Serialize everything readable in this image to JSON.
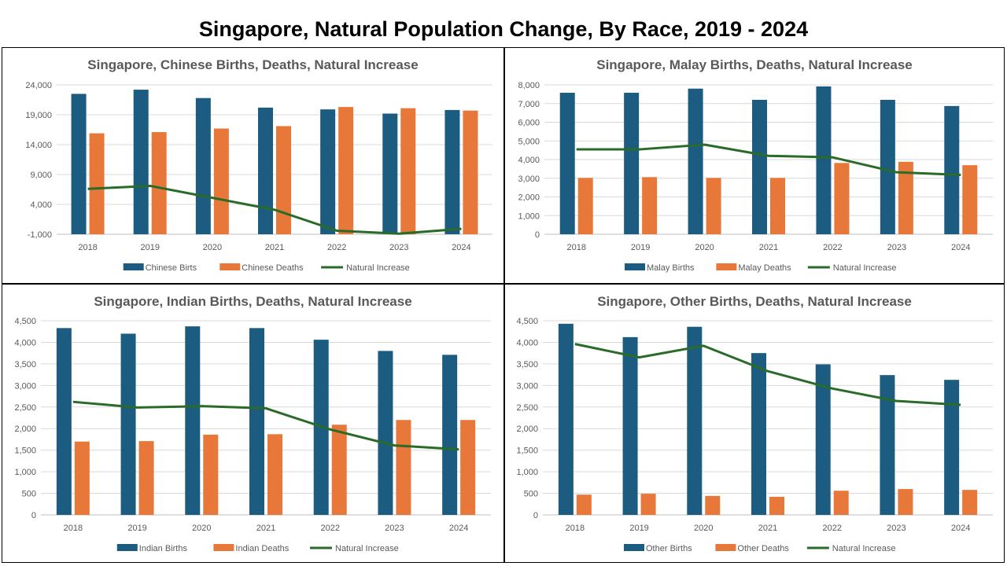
{
  "page_title": "Singapore, Natural Population Change, By Race, 2019 - 2024",
  "colors": {
    "births": "#1b5c80",
    "deaths": "#e8773a",
    "natural": "#2a6b2a",
    "grid": "#d9d9d9",
    "text": "#595959"
  },
  "chart_data": [
    {
      "type": "bar",
      "title": "Singapore, Chinese Births, Deaths, Natural Increase",
      "categories": [
        "2018",
        "2019",
        "2020",
        "2021",
        "2022",
        "2023",
        "2024"
      ],
      "y_ticks": [
        "24,000",
        "19,000",
        "14,000",
        "9,000",
        "4,000",
        "-1,000"
      ],
      "ylim": [
        -1000,
        24000
      ],
      "series": [
        {
          "name": "Chinese Birts",
          "kind": "bar",
          "color": "#1b5c80",
          "values": [
            22500,
            23200,
            21800,
            20200,
            19900,
            19200,
            19800
          ]
        },
        {
          "name": "Chinese Deaths",
          "kind": "bar",
          "color": "#e8773a",
          "values": [
            15900,
            16100,
            16700,
            17100,
            20300,
            20100,
            19700
          ]
        },
        {
          "name": "Natural Increase",
          "kind": "line",
          "color": "#2a6b2a",
          "values": [
            6600,
            7100,
            5100,
            3100,
            -400,
            -900,
            -100
          ]
        }
      ],
      "legend": "bottom",
      "grid": true
    },
    {
      "type": "bar",
      "title": "Singapore, Malay Births, Deaths, Natural Increase",
      "categories": [
        "2018",
        "2019",
        "2020",
        "2021",
        "2022",
        "2023",
        "2024"
      ],
      "y_ticks": [
        "8,000",
        "7,000",
        "6,000",
        "5,000",
        "4,000",
        "3,000",
        "2,000",
        "1,000",
        "0"
      ],
      "ylim": [
        0,
        8000
      ],
      "series": [
        {
          "name": "Malay Births",
          "kind": "bar",
          "color": "#1b5c80",
          "values": [
            7580,
            7580,
            7800,
            7200,
            7920,
            7200,
            6870
          ]
        },
        {
          "name": "Malay Deaths",
          "kind": "bar",
          "color": "#e8773a",
          "values": [
            3020,
            3060,
            3020,
            3020,
            3820,
            3880,
            3700
          ]
        },
        {
          "name": "Natural Increase",
          "kind": "line",
          "color": "#2a6b2a",
          "values": [
            4550,
            4550,
            4800,
            4200,
            4120,
            3320,
            3180
          ]
        }
      ],
      "legend": "bottom",
      "grid": true
    },
    {
      "type": "bar",
      "title": "Singapore, Indian Births, Deaths, Natural Increase",
      "categories": [
        "2018",
        "2019",
        "2020",
        "2021",
        "2022",
        "2023",
        "2024"
      ],
      "y_ticks": [
        "4,500",
        "4,000",
        "3,500",
        "3,000",
        "2,500",
        "2,000",
        "1,500",
        "1,000",
        "500",
        "0"
      ],
      "ylim": [
        0,
        4500
      ],
      "series": [
        {
          "name": "Indian Births",
          "kind": "bar",
          "color": "#1b5c80",
          "values": [
            4330,
            4200,
            4370,
            4330,
            4060,
            3800,
            3710
          ]
        },
        {
          "name": "Indian Deaths",
          "kind": "bar",
          "color": "#e8773a",
          "values": [
            1700,
            1710,
            1860,
            1870,
            2090,
            2200,
            2200
          ]
        },
        {
          "name": "Natural Increase",
          "kind": "line",
          "color": "#2a6b2a",
          "values": [
            2620,
            2490,
            2520,
            2470,
            1980,
            1610,
            1520
          ]
        }
      ],
      "legend": "bottom",
      "grid": true
    },
    {
      "type": "bar",
      "title": "Singapore, Other Births, Deaths, Natural Increase",
      "categories": [
        "2018",
        "2019",
        "2020",
        "2021",
        "2022",
        "2023",
        "2024"
      ],
      "y_ticks": [
        "4,500",
        "4,000",
        "3,500",
        "3,000",
        "2,500",
        "2,000",
        "1,500",
        "1,000",
        "500",
        "0"
      ],
      "ylim": [
        0,
        4500
      ],
      "series": [
        {
          "name": "Other Births",
          "kind": "bar",
          "color": "#1b5c80",
          "values": [
            4430,
            4120,
            4360,
            3750,
            3490,
            3240,
            3130
          ]
        },
        {
          "name": "Other Deaths",
          "kind": "bar",
          "color": "#e8773a",
          "values": [
            470,
            490,
            440,
            420,
            560,
            600,
            580
          ]
        },
        {
          "name": "Natural Increase",
          "kind": "line",
          "color": "#2a6b2a",
          "values": [
            3960,
            3650,
            3920,
            3330,
            2930,
            2640,
            2550
          ]
        }
      ],
      "legend": "bottom",
      "grid": true
    }
  ]
}
